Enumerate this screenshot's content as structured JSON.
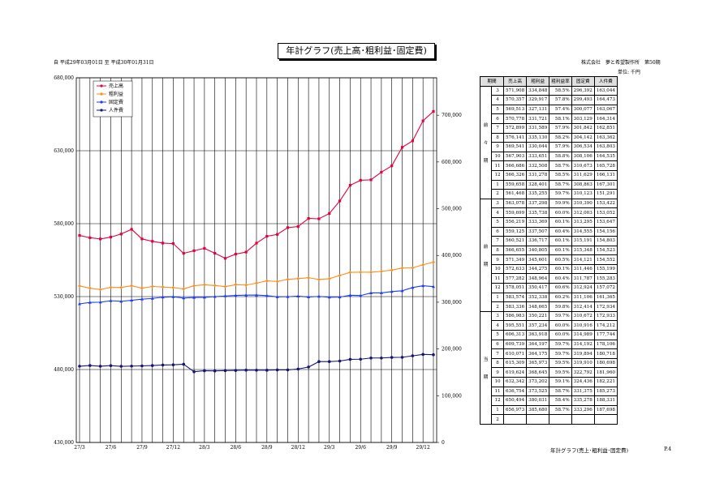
{
  "title": "年計グラフ(売上高･粗利益･固定費)",
  "period": "自 平成29年03月01日 至 平成30年01月31日",
  "company": "株式会社　夢と希望製作所　第50期",
  "unit": "単位: 千円",
  "footer": {
    "title": "年計グラフ(売上･粗利益･固定費)",
    "page": "P.4"
  },
  "table": {
    "headers": [
      "期間",
      "売上高",
      "粗利益",
      "粗利益率",
      "固定費",
      "人件費"
    ],
    "groups": [
      {
        "label": [
          "前",
          "々",
          "期"
        ],
        "rows": [
          [
            "3",
            "571,908",
            "334,848",
            "58.5%",
            "296,392",
            "163,044"
          ],
          [
            "4",
            "570,357",
            "329,917",
            "57.8%",
            "299,493",
            "164,473"
          ],
          [
            "5",
            "569,513",
            "327,131",
            "57.4%",
            "300,077",
            "163,067"
          ],
          [
            "6",
            "570,778",
            "331,721",
            "58.1%",
            "303,129",
            "164,314"
          ],
          [
            "7",
            "572,899",
            "331,589",
            "57.9%",
            "301,842",
            "162,851"
          ],
          [
            "8",
            "576,141",
            "335,130",
            "58.2%",
            "304,142",
            "163,362"
          ],
          [
            "9",
            "569,541",
            "330,044",
            "57.9%",
            "306,534",
            "163,803"
          ],
          [
            "10",
            "567,903",
            "333,651",
            "58.8%",
            "308,106",
            "164,535"
          ],
          [
            "11",
            "566,686",
            "332,508",
            "58.7%",
            "310,673",
            "165,728"
          ],
          [
            "12",
            "566,326",
            "331,278",
            "58.5%",
            "311,629",
            "166,131"
          ],
          [
            "1",
            "559,658",
            "328,401",
            "58.7%",
            "308,863",
            "167,301"
          ],
          [
            "2",
            "561,468",
            "335,255",
            "59.7%",
            "310,123",
            "151,291"
          ]
        ]
      },
      {
        "label": [
          "前",
          "期"
        ],
        "rows": [
          [
            "3",
            "563,078",
            "337,298",
            "59.9%",
            "310,390",
            "153,422"
          ],
          [
            "4",
            "559,699",
            "335,738",
            "60.0%",
            "312,003",
            "153,052"
          ],
          [
            "5",
            "556,219",
            "333,369",
            "60.1%",
            "313,295",
            "153,647"
          ],
          [
            "6",
            "559,125",
            "337,507",
            "60.4%",
            "314,555",
            "154,156"
          ],
          [
            "7",
            "560,521",
            "336,717",
            "60.1%",
            "315,191",
            "154,803"
          ],
          [
            "8",
            "566,655",
            "340,805",
            "60.1%",
            "315,348",
            "154,523"
          ],
          [
            "9",
            "571,349",
            "345,601",
            "60.5%",
            "314,121",
            "154,552"
          ],
          [
            "10",
            "572,633",
            "344,275",
            "60.1%",
            "311,446",
            "155,199"
          ],
          [
            "11",
            "577,282",
            "348,964",
            "60.4%",
            "311,787",
            "155,283"
          ],
          [
            "12",
            "578,051",
            "350,417",
            "60.6%",
            "312,924",
            "157,072"
          ],
          [
            "1",
            "583,574",
            "352,338",
            "60.2%",
            "311,106",
            "161,365"
          ],
          [
            "2",
            "583,336",
            "348,665",
            "59.8%",
            "312,414",
            "172,934"
          ]
        ]
      },
      {
        "label": [
          "当",
          "期"
        ],
        "rows": [
          [
            "3",
            "586,983",
            "350,221",
            "59.7%",
            "310,672",
            "172,933"
          ],
          [
            "4",
            "595,551",
            "357,234",
            "60.0%",
            "310,916",
            "174,212"
          ],
          [
            "5",
            "606,313",
            "363,918",
            "60.0%",
            "314,989",
            "177,744"
          ],
          [
            "6",
            "609,739",
            "364,197",
            "59.7%",
            "314,192",
            "178,106"
          ],
          [
            "7",
            "610,071",
            "364,175",
            "59.7%",
            "319,894",
            "180,718"
          ],
          [
            "8",
            "615,309",
            "365,973",
            "59.5%",
            "319,910",
            "180,698"
          ],
          [
            "9",
            "619,624",
            "368,645",
            "59.5%",
            "322,792",
            "181,960"
          ],
          [
            "10",
            "632,342",
            "373,202",
            "59.1%",
            "324,436",
            "182,221"
          ],
          [
            "11",
            "636,754",
            "373,525",
            "58.7%",
            "331,375",
            "185,273"
          ],
          [
            "12",
            "650,494",
            "380,031",
            "58.4%",
            "335,278",
            "188,331"
          ],
          [
            "1",
            "656,973",
            "385,680",
            "58.7%",
            "333,296",
            "187,698"
          ],
          [
            "2",
            "",
            "",
            "",
            "",
            ""
          ]
        ]
      }
    ]
  },
  "chart_data": {
    "type": "line",
    "x": [
      "27/3",
      "27/4",
      "27/5",
      "27/6",
      "27/7",
      "27/8",
      "27/9",
      "27/10",
      "27/11",
      "27/12",
      "28/1",
      "28/2",
      "28/3",
      "28/4",
      "28/5",
      "28/6",
      "28/7",
      "28/8",
      "28/9",
      "28/10",
      "28/11",
      "28/12",
      "29/1",
      "29/2",
      "29/3",
      "29/4",
      "29/5",
      "29/6",
      "29/7",
      "29/8",
      "29/9",
      "29/10",
      "29/11",
      "29/12",
      "30/1"
    ],
    "x_tick_labels": [
      "27/3",
      "27/6",
      "27/9",
      "27/12",
      "28/3",
      "28/6",
      "28/9",
      "28/12",
      "29/3",
      "29/6",
      "29/9",
      "29/12"
    ],
    "left_axis": {
      "ylim": [
        430000,
        680000
      ],
      "ticks": [
        "430,000",
        "480,000",
        "530,000",
        "580,000",
        "630,000",
        "680,000"
      ]
    },
    "right_axis": {
      "ylim": [
        0,
        780000
      ],
      "ticks": [
        "0",
        "100,000",
        "200,000",
        "300,000",
        "400,000",
        "500,000",
        "600,000",
        "700,000"
      ]
    },
    "grid": true,
    "legend": "top-left",
    "series": [
      {
        "name": "売上高",
        "axis": "left",
        "color": "#e8003d",
        "marker": "square",
        "values": [
          571908,
          570357,
          569513,
          570778,
          572899,
          576141,
          569541,
          567903,
          566686,
          566326,
          559658,
          561468,
          563078,
          559699,
          556219,
          559125,
          560521,
          566655,
          571349,
          572633,
          577282,
          578051,
          583574,
          583336,
          586983,
          595551,
          606313,
          609739,
          610071,
          615309,
          619624,
          632342,
          636754,
          650494,
          656973
        ]
      },
      {
        "name": "粗利益",
        "axis": "right",
        "color": "#ff8c1a",
        "marker": "diamond",
        "values": [
          334848,
          329917,
          327131,
          331721,
          331589,
          335130,
          330044,
          333651,
          332508,
          331278,
          328401,
          335255,
          337298,
          335738,
          333369,
          337507,
          336717,
          340805,
          345601,
          344275,
          348964,
          350417,
          352338,
          348665,
          350221,
          357234,
          363918,
          364197,
          364175,
          365973,
          368645,
          373202,
          373525,
          380031,
          385680
        ]
      },
      {
        "name": "固定費",
        "axis": "right",
        "color": "#1a3cff",
        "marker": "triangle",
        "values": [
          296392,
          299493,
          300077,
          303129,
          301842,
          304142,
          306534,
          308106,
          310673,
          311629,
          308863,
          310123,
          310390,
          312003,
          313295,
          314555,
          315191,
          315348,
          314121,
          311446,
          311787,
          312924,
          311106,
          312414,
          310672,
          310916,
          314989,
          314192,
          319894,
          319910,
          322792,
          324436,
          331375,
          335278,
          333296
        ]
      },
      {
        "name": "人件費",
        "axis": "right",
        "color": "#14147a",
        "marker": "circle",
        "values": [
          163044,
          164473,
          163067,
          164314,
          162851,
          163362,
          163803,
          164535,
          165728,
          166131,
          167301,
          151291,
          153422,
          153052,
          153647,
          154156,
          154803,
          154523,
          154552,
          155199,
          155283,
          157072,
          161365,
          172934,
          172933,
          174212,
          177744,
          178106,
          180718,
          180698,
          181960,
          182221,
          185273,
          188331,
          187698
        ]
      }
    ]
  }
}
